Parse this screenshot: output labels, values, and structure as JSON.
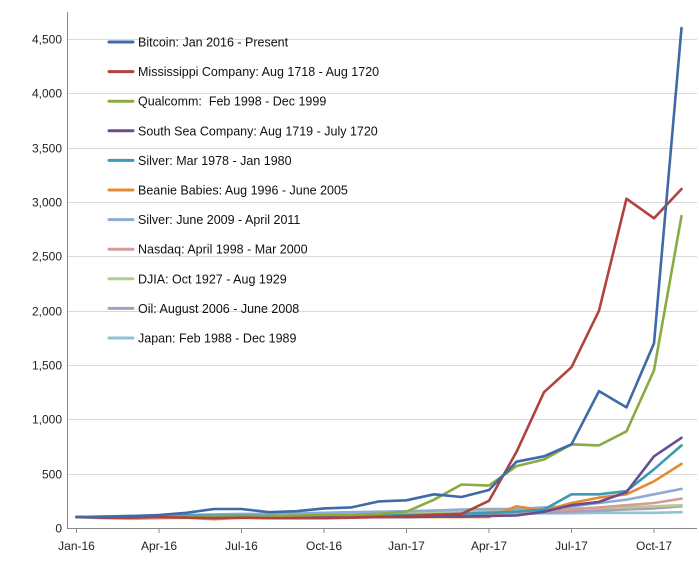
{
  "chart_data": {
    "type": "line",
    "title": "",
    "xlabel": "",
    "ylabel": "",
    "ylim": [
      0,
      4700
    ],
    "grid": true,
    "legend_position": "top-left",
    "x": [
      "Jan-16",
      "Feb-16",
      "Mar-16",
      "Apr-16",
      "May-16",
      "Jun-16",
      "Jul-16",
      "Aug-16",
      "Sep-16",
      "Oct-16",
      "Nov-16",
      "Dec-16",
      "Jan-17",
      "Feb-17",
      "Mar-17",
      "Apr-17",
      "May-17",
      "Jun-17",
      "Jul-17",
      "Aug-17",
      "Sep-17",
      "Oct-17",
      "Nov-17",
      "Dec-17"
    ],
    "x_tick_labels": [
      "Jan-16",
      "Apr-16",
      "Jul-16",
      "Oct-16",
      "Jan-17",
      "Apr-17",
      "Jul-17",
      "Oct-17"
    ],
    "y_ticks": [
      0,
      500,
      1000,
      1500,
      2000,
      2500,
      3000,
      3500,
      4000,
      4500
    ],
    "y_tick_labels": [
      "0",
      "500",
      "1,000",
      "1,500",
      "2,000",
      "2,500",
      "3,000",
      "3,500",
      "4,000",
      "4,500"
    ],
    "series": [
      {
        "name": "Bitcoin: Jan 2016 - Present",
        "color": "#3f6aa8",
        "values": [
          100,
          100,
          110,
          120,
          140,
          175,
          175,
          145,
          155,
          180,
          190,
          245,
          255,
          310,
          285,
          350,
          610,
          660,
          770,
          1260,
          1110,
          1700,
          4600,
          null
        ]
      },
      {
        "name": "Mississippi Company: Aug 1718 - Aug 1720",
        "color": "#b04340",
        "values": [
          100,
          95,
          95,
          100,
          95,
          90,
          95,
          90,
          90,
          90,
          95,
          100,
          110,
          120,
          130,
          250,
          700,
          1250,
          1480,
          2000,
          3030,
          2850,
          3120,
          null
        ]
      },
      {
        "name": "Qualcomm:  Feb 1998 - Dec 1999",
        "color": "#8aab42",
        "values": [
          100,
          100,
          100,
          105,
          105,
          110,
          110,
          110,
          115,
          120,
          120,
          130,
          150,
          260,
          400,
          390,
          570,
          630,
          770,
          760,
          890,
          1450,
          2870,
          null
        ]
      },
      {
        "name": "South Sea Company: Aug 1719 - July 1720",
        "color": "#6a4d8f",
        "values": [
          100,
          100,
          100,
          100,
          100,
          100,
          100,
          100,
          100,
          100,
          100,
          100,
          100,
          105,
          105,
          110,
          115,
          150,
          210,
          240,
          330,
          660,
          830,
          null
        ]
      },
      {
        "name": "Silver: Mar 1978 - Jan 1980",
        "color": "#3d9bb1",
        "values": [
          100,
          105,
          110,
          110,
          115,
          115,
          115,
          110,
          110,
          115,
          115,
          115,
          120,
          125,
          130,
          140,
          150,
          170,
          310,
          310,
          340,
          540,
          760,
          null
        ]
      },
      {
        "name": "Beanie Babies: Aug 1996 - June 2005",
        "color": "#e48a35",
        "values": [
          100,
          100,
          100,
          100,
          100,
          100,
          100,
          100,
          100,
          100,
          100,
          100,
          100,
          100,
          100,
          100,
          200,
          160,
          230,
          280,
          310,
          430,
          590,
          null
        ]
      },
      {
        "name": "Silver: June 2009 - April 2011",
        "color": "#8faad3",
        "values": [
          100,
          105,
          110,
          115,
          120,
          125,
          130,
          130,
          135,
          140,
          145,
          150,
          155,
          160,
          170,
          175,
          175,
          190,
          200,
          230,
          260,
          310,
          360,
          null
        ]
      },
      {
        "name": "Nasdaq: April 1998 - Mar 2000",
        "color": "#d49c9a",
        "values": [
          100,
          90,
          85,
          90,
          95,
          80,
          95,
          100,
          100,
          105,
          105,
          110,
          115,
          125,
          135,
          145,
          150,
          155,
          170,
          190,
          210,
          230,
          270,
          null
        ]
      },
      {
        "name": "DJIA: Oct 1927 - Aug 1929",
        "color": "#b4cd8e",
        "values": [
          100,
          105,
          110,
          110,
          115,
          115,
          115,
          120,
          120,
          125,
          130,
          130,
          135,
          140,
          150,
          160,
          170,
          175,
          180,
          185,
          190,
          200,
          210,
          null
        ]
      },
      {
        "name": "Oil: August 2006 - June 2008",
        "color": "#a99ec1",
        "values": [
          100,
          100,
          100,
          95,
          95,
          100,
          100,
          100,
          100,
          105,
          105,
          110,
          115,
          120,
          125,
          130,
          135,
          140,
          150,
          160,
          170,
          180,
          200,
          null
        ]
      },
      {
        "name": "Japan: Feb 1988 - Dec 1989",
        "color": "#8fc3d4",
        "values": [
          100,
          105,
          105,
          110,
          110,
          110,
          110,
          110,
          115,
          115,
          115,
          120,
          120,
          125,
          125,
          130,
          130,
          135,
          135,
          140,
          140,
          140,
          145,
          null
        ]
      }
    ]
  }
}
